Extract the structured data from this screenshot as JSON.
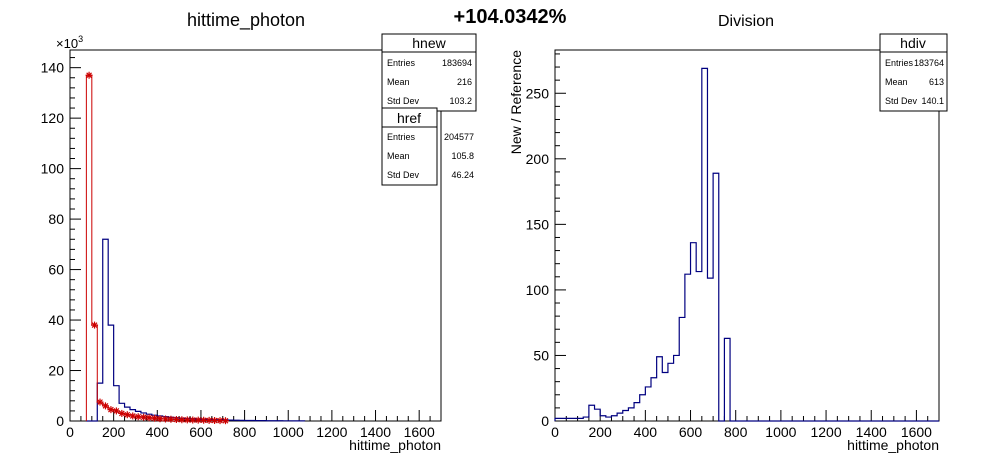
{
  "header": {
    "percent_label": "+104.0342%"
  },
  "chart_data": [
    {
      "type": "histogram",
      "title": "hittime_photon",
      "xlabel": "hittime_photon",
      "ylabel": "",
      "y_multiplier_label": "×10",
      "y_multiplier_exp": "3",
      "xlim": [
        0,
        1700
      ],
      "ylim": [
        0,
        147
      ],
      "bin_width": 25,
      "x_ticks": [
        0,
        200,
        400,
        600,
        800,
        1000,
        1200,
        1400,
        1600
      ],
      "y_ticks": [
        0,
        20,
        40,
        60,
        80,
        100,
        120,
        140
      ],
      "series": [
        {
          "name": "hnew",
          "style": "step",
          "color": "#000080",
          "bin_low": 75,
          "values": [
            0,
            0,
            15,
            72,
            38,
            14,
            7,
            5.5,
            4.5,
            3.8,
            3.2,
            2.7,
            2.3,
            2.0,
            1.7,
            1.5,
            1.3,
            1.1,
            1.0,
            0.9,
            0.8,
            0.7,
            0.6,
            0.5,
            0.45,
            0.4,
            0.35,
            0.3,
            0.25,
            0.2,
            0.2,
            0.15,
            0.15,
            0.1,
            0.1,
            0.1,
            0.08,
            0.08,
            0.06,
            0.06
          ]
        },
        {
          "name": "href",
          "style": "markers",
          "color": "#cc0000",
          "bin_low": 75,
          "values": [
            137,
            38,
            7.5,
            6,
            4.5,
            4,
            3,
            2.5,
            2,
            1.7,
            1.5,
            1.3,
            1.1,
            0.9,
            0.8,
            0.7,
            0.6,
            0.5,
            0.45,
            0.4,
            0.35,
            0.3,
            0.25,
            0.2,
            0.15,
            0.12
          ]
        }
      ],
      "stats_boxes": [
        {
          "name": "hnew",
          "rows": [
            {
              "label": "Entries",
              "value": "183694"
            },
            {
              "label": "Mean",
              "value": "216"
            },
            {
              "label": "Std Dev",
              "value": "103.2"
            }
          ]
        },
        {
          "name": "href",
          "rows": [
            {
              "label": "Entries",
              "value": "204577"
            },
            {
              "label": "Mean",
              "value": "105.8"
            },
            {
              "label": "Std Dev",
              "value": "46.24"
            }
          ]
        }
      ]
    },
    {
      "type": "histogram",
      "title": "Division",
      "xlabel": "hittime_photon",
      "ylabel": "New / Reference",
      "xlim": [
        0,
        1700
      ],
      "ylim": [
        0,
        283
      ],
      "bin_width": 25,
      "x_ticks": [
        0,
        200,
        400,
        600,
        800,
        1000,
        1200,
        1400,
        1600
      ],
      "y_ticks": [
        0,
        50,
        100,
        150,
        200,
        250
      ],
      "series": [
        {
          "name": "hdiv",
          "style": "step",
          "color": "#000080",
          "bin_low": 0,
          "values": [
            2,
            2,
            2,
            2,
            2,
            3,
            12,
            9,
            4,
            3,
            4,
            6,
            8,
            10,
            14,
            20,
            26,
            33,
            49,
            37,
            44,
            50,
            79,
            112,
            136,
            114,
            269,
            109,
            189,
            0,
            63,
            0,
            0,
            0,
            0,
            0,
            0,
            0,
            0,
            0,
            0,
            0,
            0,
            0,
            0,
            0,
            0,
            0,
            0,
            0,
            0,
            0,
            0,
            0,
            0,
            0,
            0,
            0,
            0,
            0,
            0,
            0,
            0,
            0,
            0,
            0,
            0,
            0
          ]
        }
      ],
      "stats_boxes": [
        {
          "name": "hdiv",
          "rows": [
            {
              "label": "Entries",
              "value": "183764"
            },
            {
              "label": "Mean",
              "value": "613"
            },
            {
              "label": "Std Dev",
              "value": "140.1"
            }
          ]
        }
      ]
    }
  ]
}
